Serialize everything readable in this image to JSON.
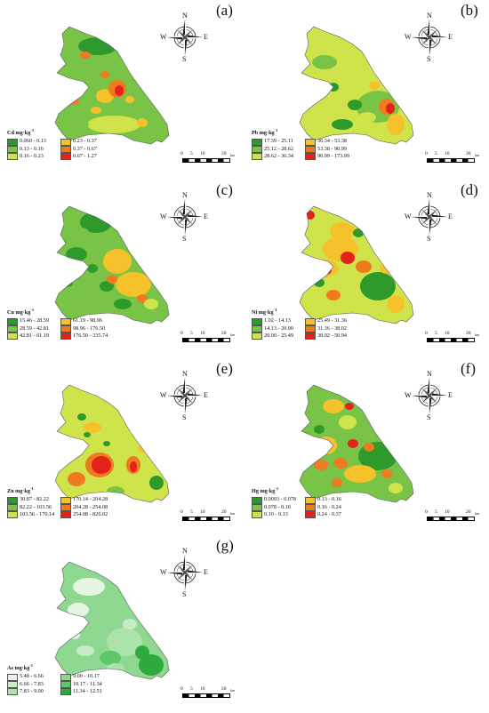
{
  "compass": {
    "n": "N",
    "s": "S",
    "e": "E",
    "w": "W",
    "icon": "compass-rose-icon"
  },
  "scale": {
    "t0": "0",
    "t1": "5",
    "t2": "10",
    "t3": "20",
    "unit": "km"
  },
  "panels": [
    {
      "id": "a",
      "letter": "(a)",
      "element": "Cd",
      "unit": "mg·kg",
      "exp": "-1",
      "classes": [
        {
          "range": "0.060 - 0.13",
          "color": "#2e9a2c"
        },
        {
          "range": "0.23 - 0.37",
          "color": "#f5c22b"
        },
        {
          "range": "0.13 - 0.16",
          "color": "#79c447"
        },
        {
          "range": "0.37 - 0.67",
          "color": "#f07a1f"
        },
        {
          "range": "0.16 - 0.23",
          "color": "#cfe34b"
        },
        {
          "range": "0.67 - 1.27",
          "color": "#e3221b"
        }
      ]
    },
    {
      "id": "b",
      "letter": "(b)",
      "element": "Pb",
      "unit": "mg·kg",
      "exp": "-1",
      "classes": [
        {
          "range": "17.39 - 25.11",
          "color": "#2e9a2c"
        },
        {
          "range": "36.34 - 53.38",
          "color": "#f5c22b"
        },
        {
          "range": "25.12 - 28.62",
          "color": "#79c447"
        },
        {
          "range": "53.38 - 90.99",
          "color": "#f07a1f"
        },
        {
          "range": "28.62 - 36.34",
          "color": "#cfe34b"
        },
        {
          "range": "90.99 - 173.99",
          "color": "#e3221b"
        }
      ]
    },
    {
      "id": "c",
      "letter": "(c)",
      "element": "Cu",
      "unit": "mg·kg",
      "exp": "-1",
      "classes": [
        {
          "range": "15.46 - 28.59",
          "color": "#2e9a2c"
        },
        {
          "range": "61.19 - 98.96",
          "color": "#f5c22b"
        },
        {
          "range": "28.59 - 42.81",
          "color": "#79c447"
        },
        {
          "range": "98.96 - 176.50",
          "color": "#f07a1f"
        },
        {
          "range": "42.81 - 61.19",
          "color": "#cfe34b"
        },
        {
          "range": "176.50 - 335.74",
          "color": "#e3221b"
        }
      ]
    },
    {
      "id": "d",
      "letter": "(d)",
      "element": "Ni",
      "unit": "mg·kg",
      "exp": "-1",
      "classes": [
        {
          "range": "1.02 - 14.13",
          "color": "#2e9a2c"
        },
        {
          "range": "25.49 - 31.36",
          "color": "#f5c22b"
        },
        {
          "range": "14.13 - 20.00",
          "color": "#79c447"
        },
        {
          "range": "31.36 - 38.02",
          "color": "#f07a1f"
        },
        {
          "range": "20.00 - 25.49",
          "color": "#cfe34b"
        },
        {
          "range": "38.02 - 50.94",
          "color": "#e3221b"
        }
      ]
    },
    {
      "id": "e",
      "letter": "(e)",
      "element": "Zn",
      "unit": "mg·kg",
      "exp": "-1",
      "classes": [
        {
          "range": "30.87 - 82.22",
          "color": "#2e9a2c"
        },
        {
          "range": "170.14 - 204.28",
          "color": "#f5c22b"
        },
        {
          "range": "82.22 - 103.56",
          "color": "#79c447"
        },
        {
          "range": "204.28 - 254.08",
          "color": "#f07a1f"
        },
        {
          "range": "103.56 - 170.14",
          "color": "#cfe34b"
        },
        {
          "range": "254.08 - 826.02",
          "color": "#e3221b"
        }
      ]
    },
    {
      "id": "f",
      "letter": "(f)",
      "element": "Hg",
      "unit": "mg·kg",
      "exp": "-1",
      "classes": [
        {
          "range": "0.0093 - 0.078",
          "color": "#2e9a2c"
        },
        {
          "range": "0.13 - 0.16",
          "color": "#f5c22b"
        },
        {
          "range": "0.078 - 0.10",
          "color": "#79c447"
        },
        {
          "range": "0.16 - 0.24",
          "color": "#f07a1f"
        },
        {
          "range": "0.10 - 0.13",
          "color": "#cfe34b"
        },
        {
          "range": "0.24 - 0.37",
          "color": "#e3221b"
        }
      ]
    },
    {
      "id": "g",
      "letter": "(g)",
      "element": "As",
      "unit": "mg·kg",
      "exp": "-1",
      "classes": [
        {
          "range": "5.48 - 6.66",
          "color": "#e4f6e1"
        },
        {
          "range": "9.00 - 10.17",
          "color": "#8fd892"
        },
        {
          "range": "6.66 - 7.83",
          "color": "#c8ecc5"
        },
        {
          "range": "10.17 - 11.34",
          "color": "#5ec767"
        },
        {
          "range": "7.83 - 9.00",
          "color": "#abe3aa"
        },
        {
          "range": "11.34 - 12.51",
          "color": "#2eaa3c"
        }
      ]
    }
  ]
}
